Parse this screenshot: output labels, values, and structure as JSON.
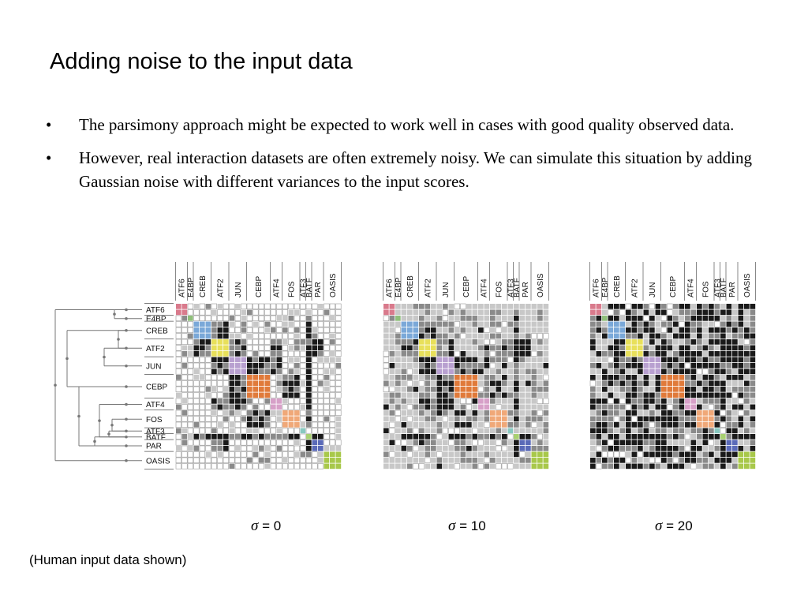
{
  "title": "Adding noise to the input data",
  "bullets": [
    {
      "mark": "•",
      "text": "The parsimony approach might be expected to work well in cases with good quality observed data."
    },
    {
      "mark": "•",
      "text": "However, real interaction datasets are often extremely noisy. We can simulate this situation by adding Gaussian noise with different variances to the input scores."
    }
  ],
  "figure": {
    "column_labels": [
      "ATF6",
      "E4BP",
      "CREB",
      "ATF2",
      "JUN",
      "CEBP",
      "ATF4",
      "FOS",
      "ATF3",
      "BATF",
      "PAR",
      "OASIS"
    ],
    "row_labels": [
      "ATF6",
      "E4BP",
      "CREB",
      "ATF2",
      "JUN",
      "CEBP",
      "ATF4",
      "FOS",
      "ATF3",
      "BATF",
      "PAR",
      "OASIS"
    ],
    "group_sizes": [
      2,
      1,
      3,
      3,
      3,
      4,
      2,
      3,
      1,
      1,
      2,
      3
    ],
    "group_colors": [
      "#d97a8c",
      "#8fbf7a",
      "#7aa8d8",
      "#e8e05a",
      "#b8a0d0",
      "#e07a3a",
      "#d7a0c8",
      "#f0a878",
      "#88c8c0",
      "#a8d070",
      "#5a6ab8",
      "#a8c84a"
    ],
    "panels": [
      {
        "sigma_symbol": "σ",
        "sigma_text": " = 0",
        "noise": 0
      },
      {
        "sigma_symbol": "σ",
        "sigma_text": " = 10",
        "noise": 10
      },
      {
        "sigma_symbol": "σ",
        "sigma_text": " = 20",
        "noise": 20
      }
    ],
    "caption": "(Human input data shown)"
  }
}
